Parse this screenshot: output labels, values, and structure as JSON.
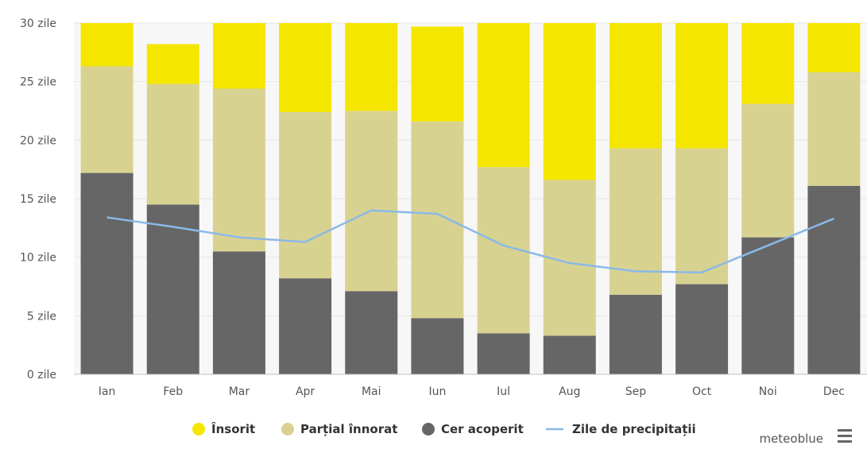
{
  "chart_data": {
    "type": "bar",
    "stacked": true,
    "categories": [
      "Ian",
      "Feb",
      "Mar",
      "Apr",
      "Mai",
      "Iun",
      "Iul",
      "Aug",
      "Sep",
      "Oct",
      "Noi",
      "Dec"
    ],
    "series": [
      {
        "name": "Cer acoperit",
        "color": "#666666",
        "values": [
          17.2,
          14.5,
          10.5,
          8.2,
          7.1,
          4.8,
          3.5,
          3.3,
          6.8,
          7.7,
          11.7,
          16.1
        ]
      },
      {
        "name": "Parțial înnorat",
        "color": "#d8d291",
        "values": [
          9.1,
          10.3,
          13.9,
          14.2,
          15.4,
          16.8,
          14.2,
          13.3,
          12.5,
          11.6,
          11.4,
          9.7
        ]
      },
      {
        "name": "Însorit",
        "color": "#f5e600",
        "values": [
          4.7,
          3.4,
          6.6,
          8.6,
          8.5,
          8.1,
          13.3,
          14.4,
          11.7,
          11.7,
          7.9,
          5.2
        ]
      }
    ],
    "line_series": {
      "name": "Zile de precipitații",
      "color": "#8ab9e8",
      "values": [
        13.4,
        12.6,
        11.7,
        11.3,
        14.0,
        13.7,
        11.0,
        9.5,
        8.8,
        8.7,
        11.0,
        13.3
      ]
    },
    "y_ticks": [
      {
        "value": 0,
        "label": "0 zile"
      },
      {
        "value": 5,
        "label": "5 zile"
      },
      {
        "value": 10,
        "label": "10 zile"
      },
      {
        "value": 15,
        "label": "15 zile"
      },
      {
        "value": 20,
        "label": "20 zile"
      },
      {
        "value": 25,
        "label": "25 zile"
      },
      {
        "value": 30,
        "label": "30 zile"
      }
    ],
    "ylim": [
      0,
      30
    ],
    "grid": true,
    "legend_position": "bottom-center"
  },
  "credit": {
    "text": "meteoblue",
    "menu_icon": "hamburger-menu-icon"
  }
}
